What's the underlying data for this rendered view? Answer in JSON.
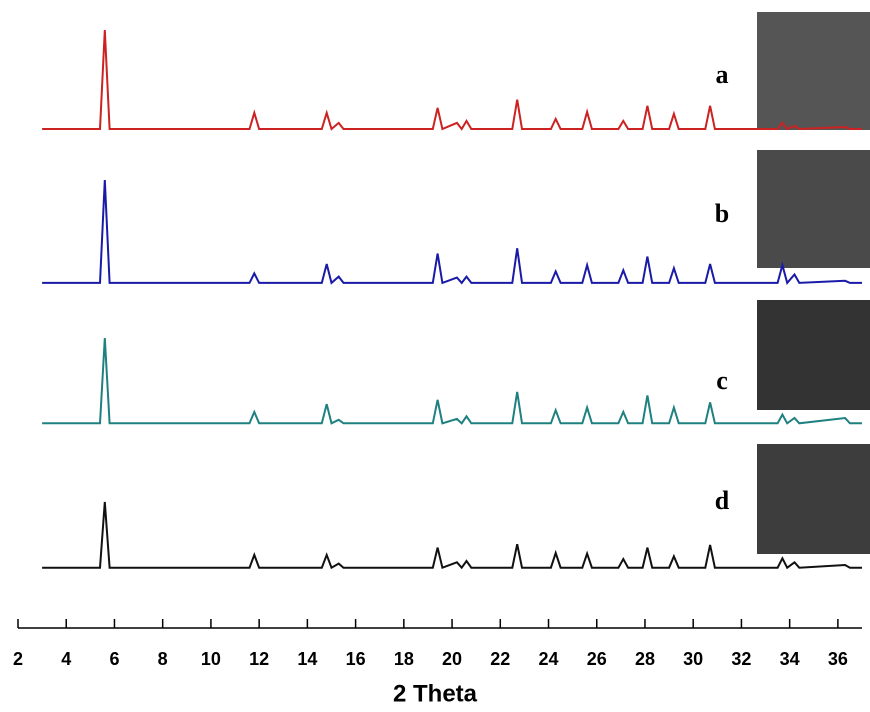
{
  "chart_data": {
    "type": "line",
    "x_label": "2 Theta",
    "x": [
      3,
      5.4,
      5.6,
      5.8,
      7,
      9,
      11.6,
      11.8,
      12,
      13.5,
      14.6,
      14.8,
      15.0,
      15.3,
      15.5,
      17,
      19.2,
      19.4,
      19.6,
      20.2,
      20.4,
      20.6,
      20.8,
      22.5,
      22.7,
      22.9,
      24.1,
      24.3,
      24.5,
      25.4,
      25.6,
      25.8,
      26.9,
      27.1,
      27.3,
      27.9,
      28.1,
      28.3,
      29.0,
      29.2,
      29.4,
      30.5,
      30.7,
      30.9,
      33.5,
      33.7,
      33.9,
      34.2,
      34.4,
      36.3,
      36.5,
      37
    ],
    "series": [
      {
        "name": "a",
        "color": "#cc2222",
        "values": [
          2,
          2,
          100,
          2,
          2,
          2,
          2,
          18,
          2,
          2,
          2,
          18,
          2,
          8,
          2,
          2,
          2,
          23,
          2,
          8,
          2,
          10,
          2,
          2,
          31,
          2,
          2,
          12,
          2,
          2,
          19,
          2,
          2,
          10,
          2,
          2,
          25,
          2,
          2,
          17,
          2,
          2,
          25,
          2,
          2,
          8,
          2,
          5,
          2,
          4,
          2,
          2
        ]
      },
      {
        "name": "b",
        "color": "#1a1aa8",
        "values": [
          2,
          2,
          100,
          2,
          2,
          2,
          2,
          11,
          2,
          2,
          2,
          20,
          2,
          8,
          2,
          2,
          2,
          30,
          2,
          7,
          2,
          8,
          2,
          2,
          35,
          2,
          2,
          13,
          2,
          2,
          19,
          2,
          2,
          14,
          2,
          2,
          27,
          2,
          2,
          16,
          2,
          2,
          20,
          2,
          2,
          19,
          2,
          10,
          2,
          4,
          2,
          2
        ]
      },
      {
        "name": "c",
        "color": "#1f8080",
        "values": [
          2,
          2,
          100,
          2,
          2,
          2,
          2,
          15,
          2,
          2,
          2,
          24,
          2,
          6,
          2,
          2,
          2,
          29,
          2,
          7,
          2,
          10,
          2,
          2,
          38,
          2,
          2,
          17,
          2,
          2,
          20,
          2,
          2,
          15,
          2,
          2,
          34,
          2,
          2,
          20,
          2,
          2,
          26,
          2,
          2,
          12,
          2,
          8,
          2,
          8,
          2,
          2
        ]
      },
      {
        "name": "d",
        "color": "#111111",
        "values": [
          2,
          2,
          100,
          2,
          2,
          2,
          2,
          21,
          2,
          2,
          2,
          21,
          2,
          8,
          2,
          2,
          2,
          32,
          2,
          10,
          2,
          12,
          2,
          2,
          37,
          2,
          2,
          24,
          2,
          2,
          23,
          2,
          2,
          15,
          2,
          2,
          32,
          2,
          2,
          19,
          2,
          2,
          36,
          2,
          2,
          16,
          2,
          10,
          2,
          6,
          2,
          2
        ]
      }
    ],
    "xlim": [
      2,
      37
    ],
    "xticks": [
      2,
      4,
      6,
      8,
      10,
      12,
      14,
      16,
      18,
      20,
      22,
      24,
      26,
      28,
      30,
      32,
      34,
      36
    ]
  }
}
